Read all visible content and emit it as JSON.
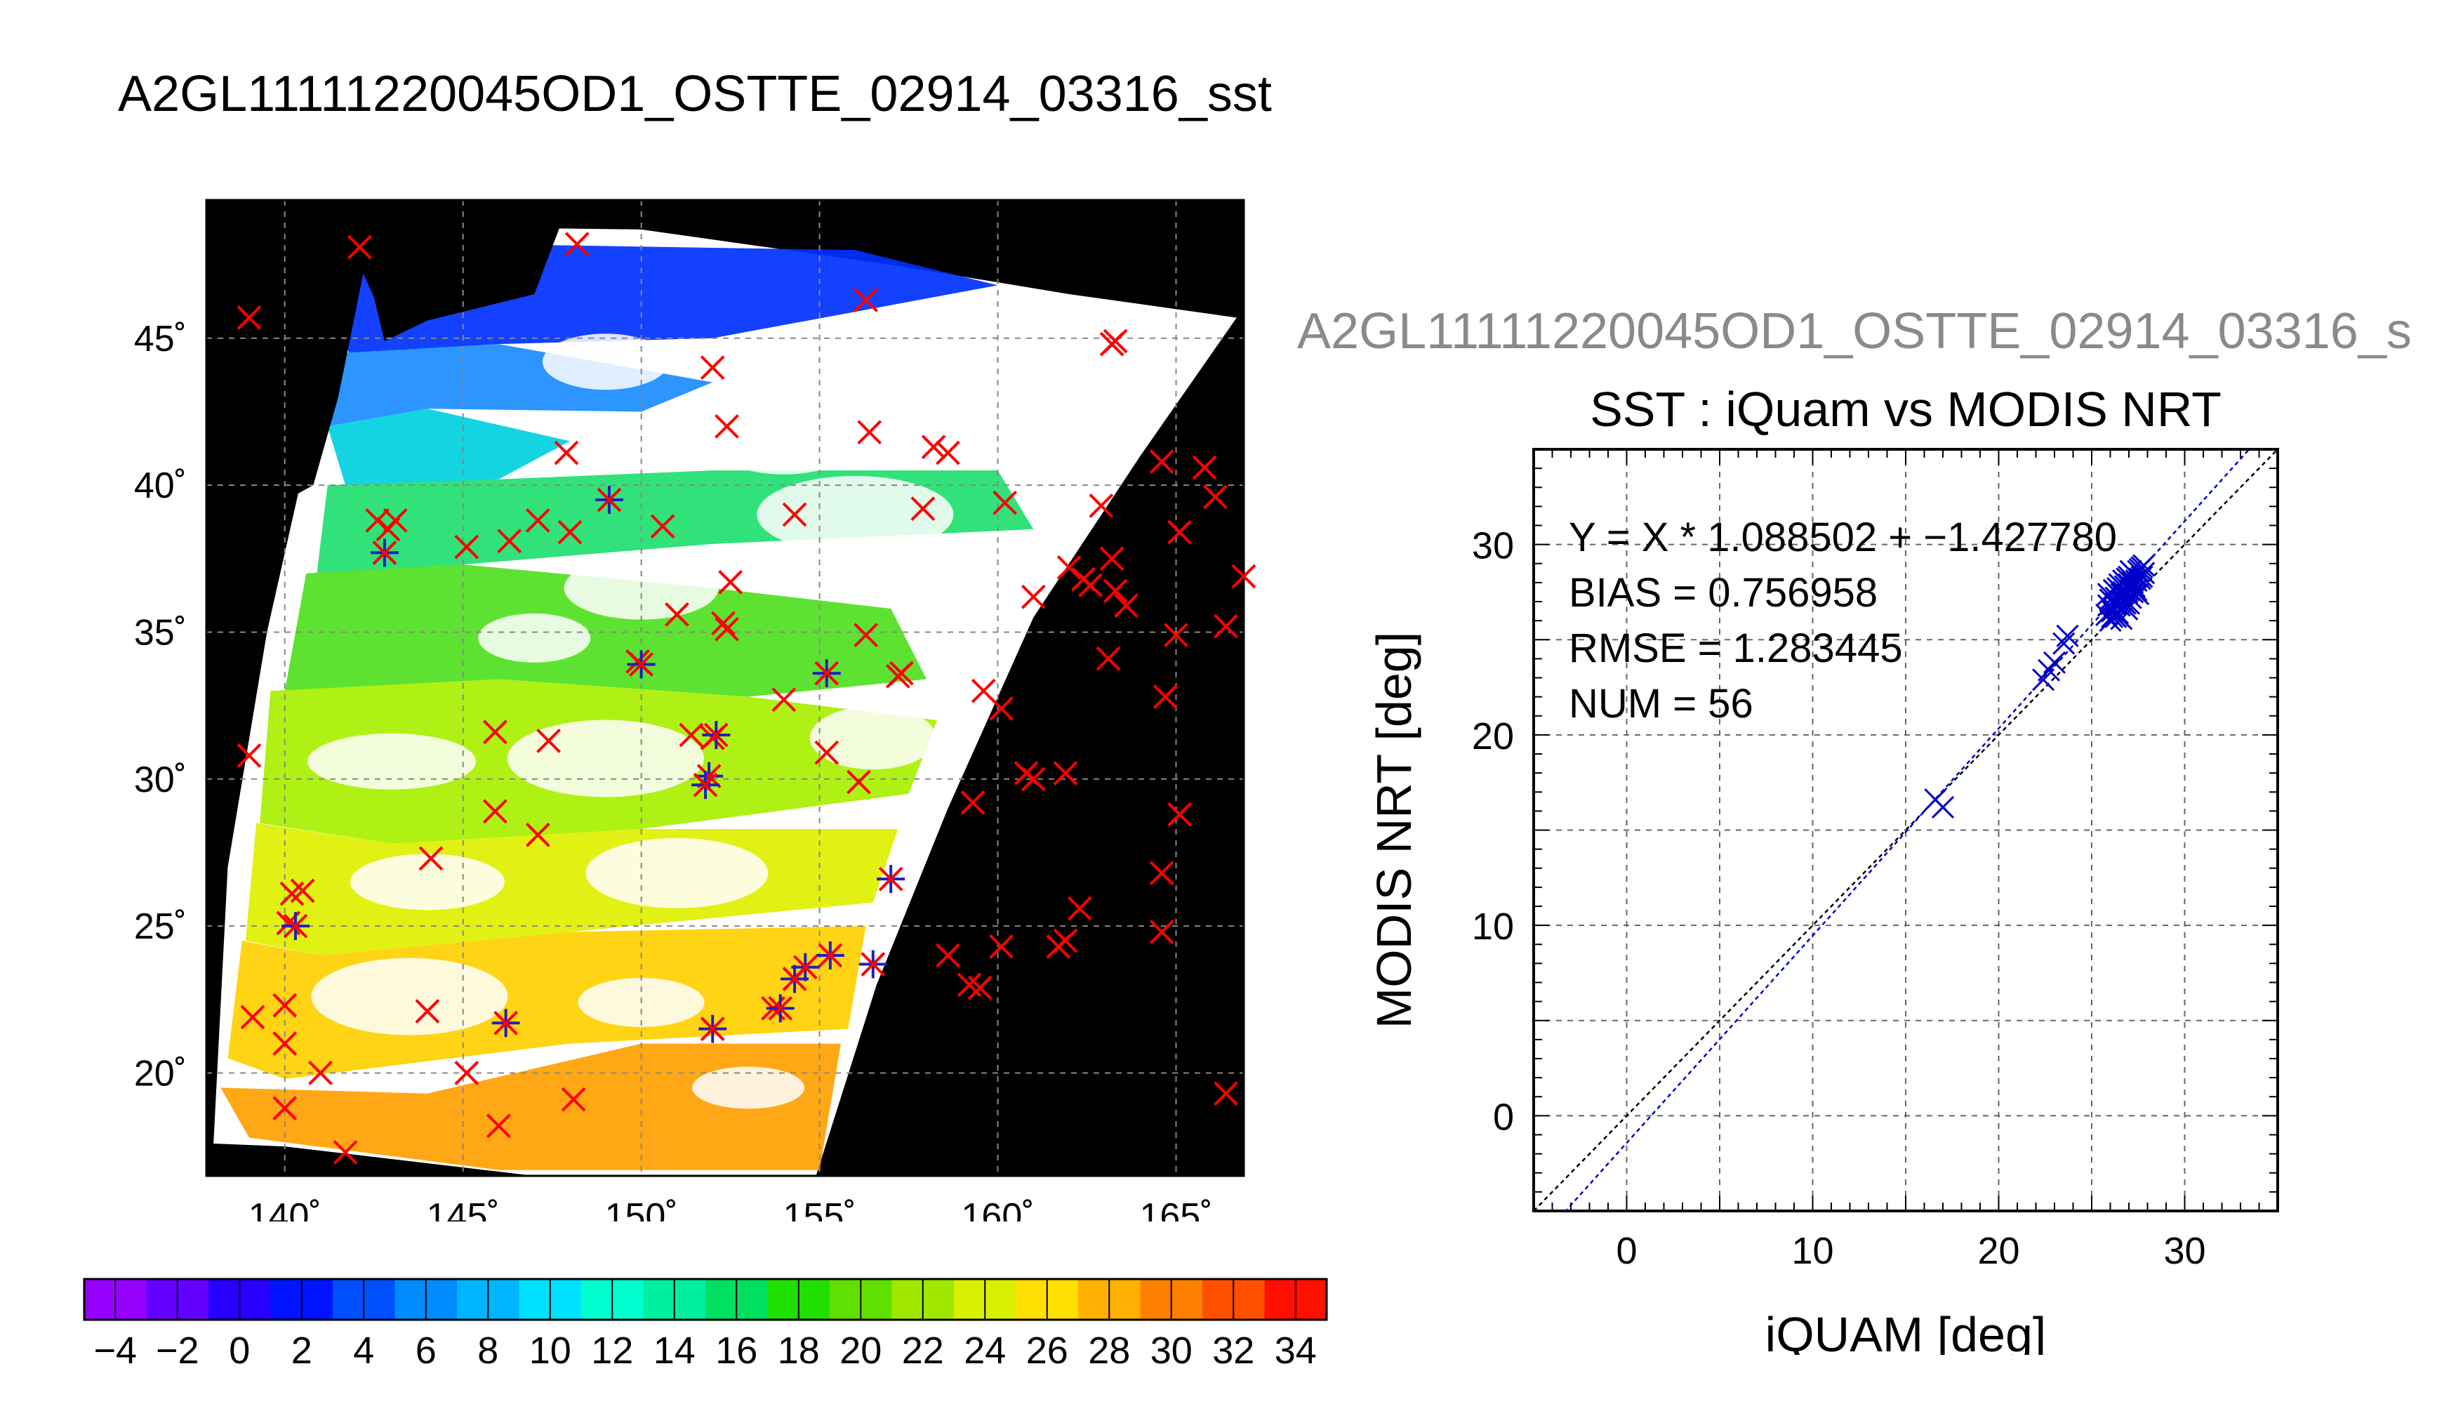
{
  "page": {
    "title": "A2GL11111220045OD1_OSTTE_02914_03316_sst",
    "subtitle": "A2GL11111220045OD1_OSTTE_02914_03316_s"
  },
  "colors": {
    "background": "#ffffff",
    "map_background": "#000000",
    "matchup_marker": "#ff0000",
    "used_marker": "#2020c0",
    "regression_line": "#0000cc",
    "identity_line": "#000000"
  },
  "chart_data": [
    {
      "type": "map",
      "title": "A2GL11111220045OD1_OSTTE_02914_03316_sst",
      "lon_ticks": [
        "140˚",
        "145˚",
        "150˚",
        "155˚",
        "160˚",
        "165˚"
      ],
      "lat_ticks": [
        "20˚",
        "25˚",
        "30˚",
        "35˚",
        "40˚",
        "45˚"
      ],
      "lon_range": [
        137.8,
        166.9
      ],
      "lat_range": [
        16.5,
        49.7
      ],
      "grid": true,
      "matchups_red": [
        [
          139.0,
          45.7
        ],
        [
          142.1,
          48.1
        ],
        [
          148.2,
          48.2
        ],
        [
          156.3,
          46.3
        ],
        [
          163.3,
          44.9
        ],
        [
          163.2,
          44.8
        ],
        [
          152.0,
          44.0
        ],
        [
          152.4,
          42.0
        ],
        [
          156.4,
          41.8
        ],
        [
          158.2,
          41.3
        ],
        [
          158.6,
          41.1
        ],
        [
          147.9,
          41.1
        ],
        [
          164.6,
          40.8
        ],
        [
          165.8,
          40.6
        ],
        [
          166.1,
          39.6
        ],
        [
          162.9,
          39.3
        ],
        [
          160.2,
          39.4
        ],
        [
          157.9,
          39.2
        ],
        [
          154.3,
          39.0
        ],
        [
          150.6,
          38.6
        ],
        [
          148.0,
          38.4
        ],
        [
          147.1,
          38.8
        ],
        [
          146.3,
          38.1
        ],
        [
          145.1,
          37.9
        ],
        [
          142.6,
          38.8
        ],
        [
          142.9,
          38.5
        ],
        [
          143.1,
          38.8
        ],
        [
          165.1,
          38.4
        ],
        [
          163.2,
          37.5
        ],
        [
          162.0,
          37.2
        ],
        [
          162.4,
          36.8
        ],
        [
          162.6,
          36.6
        ],
        [
          163.3,
          36.4
        ],
        [
          163.6,
          35.9
        ],
        [
          152.5,
          36.7
        ],
        [
          151.0,
          35.6
        ],
        [
          152.3,
          35.3
        ],
        [
          152.4,
          35.1
        ],
        [
          156.3,
          34.9
        ],
        [
          157.3,
          33.6
        ],
        [
          157.2,
          33.5
        ],
        [
          149.9,
          34.0
        ],
        [
          161.0,
          36.2
        ],
        [
          165.0,
          34.9
        ],
        [
          166.4,
          35.2
        ],
        [
          166.9,
          36.9
        ],
        [
          163.1,
          34.1
        ],
        [
          164.7,
          32.8
        ],
        [
          159.6,
          33.0
        ],
        [
          160.1,
          32.4
        ],
        [
          154.0,
          32.7
        ],
        [
          151.4,
          31.5
        ],
        [
          145.9,
          31.6
        ],
        [
          147.4,
          31.3
        ],
        [
          139.0,
          30.8
        ],
        [
          152.0,
          31.4
        ],
        [
          155.2,
          30.9
        ],
        [
          156.1,
          29.9
        ],
        [
          159.3,
          29.2
        ],
        [
          160.8,
          30.2
        ],
        [
          161.0,
          30.0
        ],
        [
          161.9,
          30.2
        ],
        [
          165.1,
          28.8
        ],
        [
          164.6,
          26.8
        ],
        [
          145.9,
          28.9
        ],
        [
          147.1,
          28.1
        ],
        [
          144.1,
          27.3
        ],
        [
          140.2,
          26.1
        ],
        [
          140.5,
          26.2
        ],
        [
          140.1,
          25.1
        ],
        [
          162.3,
          25.6
        ],
        [
          161.9,
          24.5
        ],
        [
          161.7,
          24.3
        ],
        [
          158.6,
          24.0
        ],
        [
          160.1,
          24.3
        ],
        [
          159.2,
          23.0
        ],
        [
          159.5,
          22.9
        ],
        [
          164.6,
          24.8
        ],
        [
          166.4,
          19.3
        ],
        [
          153.7,
          22.2
        ],
        [
          140.0,
          22.3
        ],
        [
          139.1,
          21.9
        ],
        [
          144.0,
          22.1
        ],
        [
          140.0,
          21.0
        ],
        [
          140.0,
          18.8
        ],
        [
          141.0,
          20.0
        ],
        [
          145.1,
          20.0
        ],
        [
          148.1,
          19.1
        ],
        [
          146.0,
          18.2
        ],
        [
          141.7,
          17.3
        ]
      ],
      "matchups_used": [
        [
          142.8,
          37.7
        ],
        [
          149.1,
          39.5
        ],
        [
          150.0,
          33.9
        ],
        [
          155.2,
          33.6
        ],
        [
          152.1,
          31.5
        ],
        [
          151.9,
          30.1
        ],
        [
          151.8,
          29.8
        ],
        [
          157.0,
          26.6
        ],
        [
          140.3,
          25.0
        ],
        [
          155.3,
          24.0
        ],
        [
          154.6,
          23.6
        ],
        [
          154.3,
          23.2
        ],
        [
          156.5,
          23.7
        ],
        [
          146.2,
          21.7
        ],
        [
          152.0,
          21.5
        ],
        [
          153.9,
          22.2
        ]
      ]
    },
    {
      "type": "colorbar",
      "range": [
        -5,
        35
      ],
      "tick_labels": [
        "-4",
        "-2",
        "0",
        "2",
        "4",
        "6",
        "8",
        "10",
        "12",
        "14",
        "16",
        "18",
        "20",
        "22",
        "24",
        "26",
        "28",
        "30",
        "32",
        "34"
      ]
    },
    {
      "type": "scatter",
      "title": "SST : iQuam vs MODIS NRT",
      "xlabel": "iQUAM [deg]",
      "ylabel": "MODIS NRT [deg]",
      "xlim": [
        -5,
        35
      ],
      "ylim": [
        -5,
        35
      ],
      "x_ticks": [
        "0",
        "10",
        "20",
        "30"
      ],
      "y_ticks": [
        "0",
        "10",
        "20",
        "30"
      ],
      "grid": true,
      "annotations": [
        "Y = X * 1.088502 + −1.427780",
        "BIAS = 0.756958",
        "RMSE = 1.283445",
        "NUM = 56"
      ],
      "regression": {
        "slope": 1.088502,
        "intercept": -1.42778
      },
      "identity_line": true,
      "points": [
        [
          16.6,
          16.6
        ],
        [
          17.0,
          16.2
        ],
        [
          22.4,
          22.9
        ],
        [
          22.7,
          23.4
        ],
        [
          23.0,
          23.8
        ],
        [
          23.5,
          24.8
        ],
        [
          23.7,
          25.2
        ],
        [
          25.8,
          26.3
        ],
        [
          25.9,
          26.8
        ],
        [
          26.0,
          27.1
        ],
        [
          26.1,
          26.5
        ],
        [
          26.2,
          26.9
        ],
        [
          26.3,
          27.2
        ],
        [
          26.4,
          26.4
        ],
        [
          26.5,
          26.8
        ],
        [
          26.6,
          27.4
        ],
        [
          26.7,
          27.0
        ],
        [
          26.8,
          27.8
        ],
        [
          26.9,
          26.6
        ],
        [
          26.9,
          27.5
        ],
        [
          27.0,
          27.9
        ],
        [
          27.0,
          28.3
        ],
        [
          27.1,
          27.2
        ],
        [
          27.2,
          28.0
        ],
        [
          27.3,
          28.4
        ],
        [
          27.4,
          27.6
        ],
        [
          27.5,
          28.6
        ],
        [
          27.6,
          28.2
        ],
        [
          27.7,
          28.8
        ],
        [
          27.8,
          28.5
        ],
        [
          26.2,
          27.6
        ],
        [
          26.5,
          27.9
        ],
        [
          26.7,
          28.1
        ],
        [
          26.0,
          26.0
        ],
        [
          26.3,
          26.2
        ],
        [
          26.6,
          26.1
        ],
        [
          27.0,
          26.9
        ],
        [
          27.2,
          27.5
        ],
        [
          27.4,
          28.1
        ],
        [
          27.6,
          28.7
        ],
        [
          25.9,
          27.4
        ],
        [
          26.1,
          26.2
        ],
        [
          26.8,
          26.9
        ],
        [
          27.1,
          28.6
        ],
        [
          27.3,
          27.8
        ],
        [
          27.5,
          27.4
        ],
        [
          26.4,
          27.7
        ],
        [
          26.9,
          28.2
        ],
        [
          27.7,
          28.3
        ],
        [
          26.2,
          26.6
        ],
        [
          26.5,
          27.3
        ],
        [
          27.0,
          27.6
        ],
        [
          27.8,
          28.9
        ],
        [
          26.3,
          26.9
        ],
        [
          26.7,
          27.5
        ],
        [
          27.2,
          28.1
        ]
      ]
    }
  ]
}
